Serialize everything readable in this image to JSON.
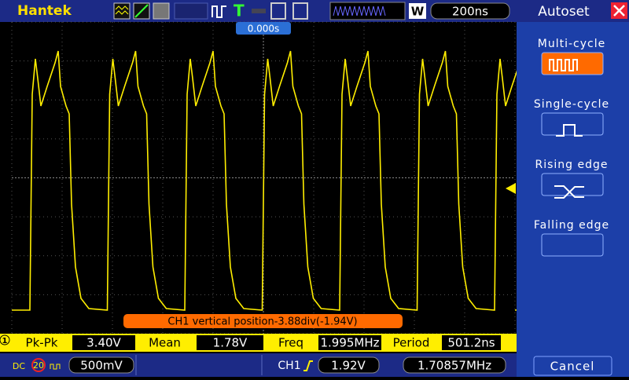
{
  "header": {
    "brand": "Hantek",
    "timebase": "200ns",
    "trigger_mode": "W"
  },
  "screen": {
    "time_offset": "0.000s",
    "message": "CH1 vertical position-3.88div(-1.94V)"
  },
  "measurements": {
    "channel": "1",
    "items": [
      {
        "label": "Pk-Pk",
        "value": "3.40V"
      },
      {
        "label": "Mean",
        "value": "1.78V"
      },
      {
        "label": "Freq",
        "value": "1.995MHz"
      },
      {
        "label": "Period",
        "value": "501.2ns"
      }
    ]
  },
  "status": {
    "coupling": "DC",
    "bw_limit": "20",
    "volts_div": "500mV",
    "trigger_source": "CH1",
    "trigger_level": "1.92V",
    "trigger_freq": "1.70857MHz"
  },
  "panel": {
    "title": "Autoset",
    "options": [
      "Multi-cycle",
      "Single-cycle",
      "Rising edge",
      "Falling edge"
    ],
    "cancel": "Cancel"
  }
}
